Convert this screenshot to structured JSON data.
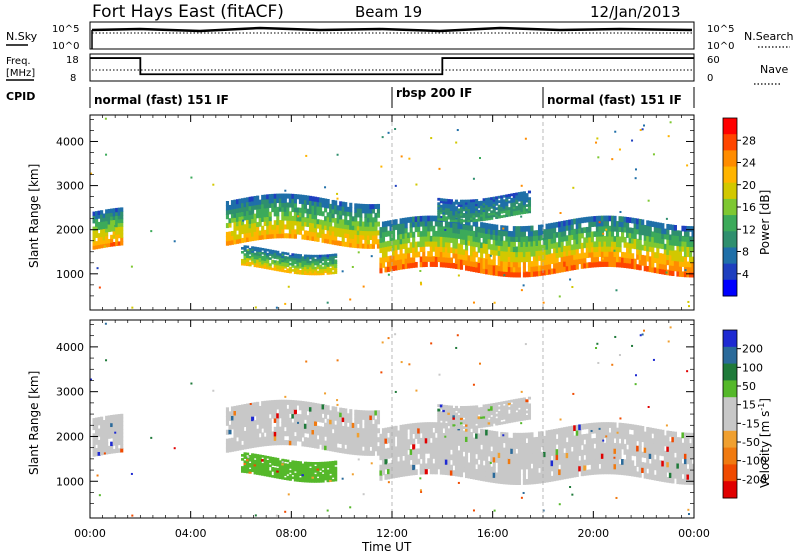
{
  "header": {
    "station": "Fort Hays East (fitACF)",
    "beam": "Beam 19",
    "date": "12/Jan/2013"
  },
  "top_panels": {
    "nsky_label": "N.Sky",
    "nsearch_label": "N.Search",
    "nsky_ticks": [
      "10^5",
      "10^0"
    ],
    "nsearch_ticks": [
      "10^5",
      "10^0"
    ],
    "freq_label": "Freq.",
    "freq_unit": "[MHz]",
    "freq_ticks": [
      "18",
      "8"
    ],
    "nave_label": "Nave",
    "nave_ticks": [
      "60",
      "0"
    ],
    "cpid_label": "CPID"
  },
  "cpid_segments": [
    {
      "label": "normal (fast) 151 IF",
      "start_hour": 0
    },
    {
      "label": "rbsp 200 IF",
      "start_hour": 12
    },
    {
      "label": "normal (fast) 151 IF",
      "start_hour": 18
    }
  ],
  "axes": {
    "x_ticks": [
      "00:00",
      "04:00",
      "08:00",
      "12:00",
      "16:00",
      "20:00",
      "00:00"
    ],
    "x_label": "Time UT",
    "y_ticks": [
      "1000",
      "2000",
      "3000",
      "4000"
    ],
    "y_label": "Slant Range [km]"
  },
  "colorbars": {
    "power": {
      "label": "Power [dB]",
      "ticks": [
        "28",
        "24",
        "20",
        "16",
        "12",
        "8",
        "4"
      ],
      "colors": [
        "#ff0000",
        "#ff4500",
        "#ff8c00",
        "#ffb400",
        "#d2c800",
        "#7ec832",
        "#3caa5a",
        "#2f8f6e",
        "#1f6fa8",
        "#1e3fbf",
        "#0000ff"
      ]
    },
    "velocity": {
      "label": "Velocity [m s",
      "label_exp": "-1",
      "label_end": "]",
      "ticks": [
        "200",
        "100",
        "50",
        "15",
        "-15",
        "-50",
        "-100",
        "-200"
      ],
      "colors": [
        "#1e2ad2",
        "#2a6a9a",
        "#1f7a3a",
        "#55b82a",
        "#c8c8c8",
        "#c8c8c8",
        "#f0a030",
        "#f07a10",
        "#f04a00",
        "#e00000"
      ]
    }
  },
  "chart_data": {
    "type": "heatmap",
    "x_range_hours": [
      0,
      24
    ],
    "y_range_km": [
      180,
      4600
    ],
    "freq_steps": [
      {
        "start_hour": 0,
        "end_hour": 2,
        "freq_mhz": 16.5
      },
      {
        "start_hour": 2,
        "end_hour": 14,
        "freq_mhz": 10.5
      },
      {
        "start_hour": 14,
        "end_hour": 24,
        "freq_mhz": 16.5
      }
    ],
    "power_bands": [
      {
        "t0": 0.1,
        "t1": 1.3,
        "r_lo": 1550,
        "r_hi": 2400,
        "peak_db": 28
      },
      {
        "t0": 5.4,
        "t1": 11.5,
        "r_lo": 1700,
        "r_hi": 2700,
        "peak_db": 26
      },
      {
        "t0": 11.5,
        "t1": 24,
        "r_lo": 1050,
        "r_hi": 2200,
        "peak_db": 30
      },
      {
        "t0": 6.0,
        "t1": 9.8,
        "r_lo": 1100,
        "r_hi": 1550,
        "peak_db": 24
      },
      {
        "t0": 13.8,
        "t1": 17.5,
        "r_lo": 2300,
        "r_hi": 2800,
        "peak_db": 14
      }
    ],
    "velocity_summary": "mostly ground scatter (-15 to 15 m/s) with scattered ±50–200 m/s ionospheric echoes"
  }
}
